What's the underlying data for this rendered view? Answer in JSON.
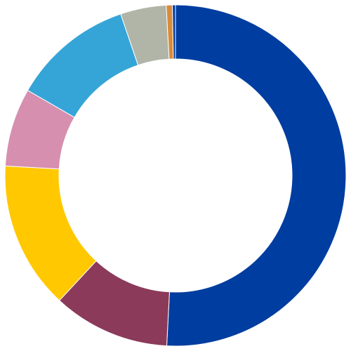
{
  "chart_data": {
    "type": "pie",
    "variant": "donut",
    "start_angle": "12 o'clock",
    "direction": "clockwise",
    "legend": "none",
    "slices": [
      {
        "value": 52.7,
        "color": "#003DA0"
      },
      {
        "value": 11.5,
        "color": "#8B3A5A"
      },
      {
        "value": 14.5,
        "color": "#FFC800"
      },
      {
        "value": 7.7,
        "color": "#D68FAF"
      },
      {
        "value": 11.9,
        "color": "#35A5D8"
      },
      {
        "value": 4.5,
        "color": "#B1B5A8"
      },
      {
        "value": 0.6,
        "color": "#D98B38"
      },
      {
        "value": 0.3,
        "color": "#003DA0"
      }
    ]
  }
}
